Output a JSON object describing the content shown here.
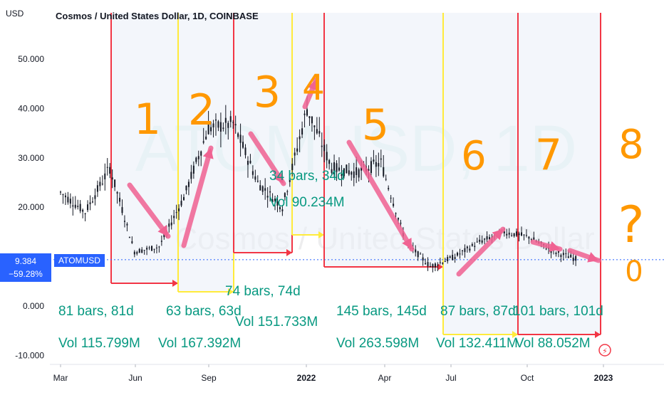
{
  "header": {
    "currency": "USD",
    "title": "Cosmos / United States Dollar, 1D, COINBASE",
    "watermark": "ATOMUSD, 1D",
    "watermark_sub": "Cosmos / United States Dollar"
  },
  "price_tag": {
    "price": "9.384",
    "change": "−59.28%",
    "symbol": "ATOMUSD"
  },
  "colors": {
    "candles": "#131722",
    "red_annotation": "#f23645",
    "yellow_annotation": "#ffeb3b",
    "range_fill": "#e9eef8",
    "measure_text": "#089981",
    "arrow_pink": "#f06292",
    "handwriting": "#ff9800",
    "price_line": "#2962ff"
  },
  "chart_data": {
    "type": "candlestick",
    "y_ticks": [
      "50.000",
      "40.000",
      "30.000",
      "20.000",
      "0.000",
      "-10.000"
    ],
    "y_tick_values": [
      50,
      40,
      30,
      20,
      0,
      -10
    ],
    "x_ticks": [
      "Mar",
      "Jun",
      "Sep",
      "2022",
      "Apr",
      "Jul",
      "Oct",
      "2023"
    ],
    "last_price": 9.384,
    "series": [
      {
        "x": "2021-03",
        "y": 23
      },
      {
        "x": "2021-04",
        "y": 19
      },
      {
        "x": "2021-05",
        "y": 28
      },
      {
        "x": "2021-06",
        "y": 11
      },
      {
        "x": "2021-07",
        "y": 12
      },
      {
        "x": "2021-08",
        "y": 22
      },
      {
        "x": "2021-09",
        "y": 36
      },
      {
        "x": "2021-10",
        "y": 37
      },
      {
        "x": "2021-11",
        "y": 25
      },
      {
        "x": "2021-12",
        "y": 20
      },
      {
        "x": "2022-01",
        "y": 40
      },
      {
        "x": "2022-02",
        "y": 28
      },
      {
        "x": "2022-03",
        "y": 27
      },
      {
        "x": "2022-04",
        "y": 29
      },
      {
        "x": "2022-05",
        "y": 13
      },
      {
        "x": "2022-06",
        "y": 8
      },
      {
        "x": "2022-07",
        "y": 10
      },
      {
        "x": "2022-08",
        "y": 13
      },
      {
        "x": "2022-09",
        "y": 15
      },
      {
        "x": "2022-10",
        "y": 14
      },
      {
        "x": "2022-11",
        "y": 11
      },
      {
        "x": "2022-12",
        "y": 9.4
      }
    ],
    "measurements": [
      {
        "bars_label": "81 bars, 81d",
        "vol_label": "Vol 115.799M"
      },
      {
        "bars_label": "63 bars, 63d",
        "vol_label": "Vol 167.392M"
      },
      {
        "bars_label": "74 bars, 74d",
        "vol_label": "Vol 151.733M"
      },
      {
        "bars_label": "34 bars, 34d",
        "vol_label": "Vol 90.234M"
      },
      {
        "bars_label": "145 bars, 145d",
        "vol_label": "Vol 263.598M"
      },
      {
        "bars_label": "87 bars, 87d",
        "vol_label": "Vol 132.411M"
      },
      {
        "bars_label": "101 bars, 101d",
        "vol_label": "Vol 88.052M"
      }
    ],
    "handwritten_marks": [
      "1",
      "2",
      "3",
      "4",
      "5",
      "6",
      "7",
      "8",
      "?",
      "0"
    ]
  }
}
